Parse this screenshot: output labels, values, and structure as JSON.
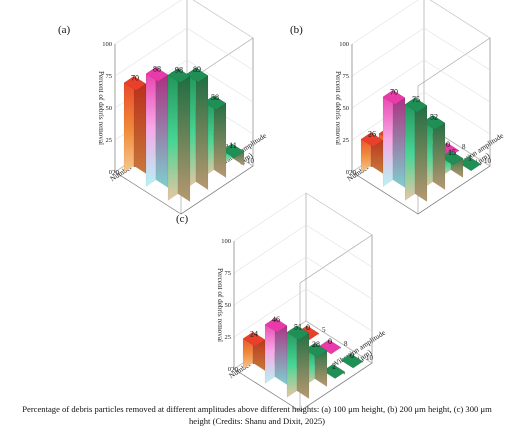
{
  "caption": "Percentage of debris particles removed at different amplitudes above different heights: (a) 100 μm height, (b) 200 μm height, (c) 300 μm height (Credits: Shanu and Dixit, 2025)",
  "chart_data": [
    {
      "type": "bar3d",
      "panel_label": "(a)",
      "zlabel": "Percent of debris removal",
      "xlabel": "Number of cycle",
      "ylabel": "Vibration amplitude (μm)",
      "zlim": [
        0,
        100
      ],
      "z_ticks": [
        0,
        25,
        50,
        75,
        100
      ],
      "cycles": [
        20,
        15,
        10,
        5
      ],
      "amplitudes": [
        5,
        8,
        10
      ],
      "values": [
        [
          70,
          88,
          98
        ],
        [
          58,
          74,
          89
        ],
        [
          30,
          40,
          58
        ],
        [
          1,
          10,
          11
        ]
      ],
      "labels": [
        [
          "70",
          "88",
          "98"
        ],
        [
          "58",
          "74",
          "89"
        ],
        [
          "30",
          "40",
          "58"
        ],
        [
          "1",
          "10",
          "11"
        ]
      ]
    },
    {
      "type": "bar3d",
      "panel_label": "(b)",
      "zlabel": "Percent of debris removal",
      "xlabel": "Number of cycle",
      "ylabel": "Vibration amplitude (μm)",
      "zlim": [
        0,
        100
      ],
      "z_ticks": [
        0,
        25,
        50,
        75,
        100
      ],
      "cycles": [
        20,
        15,
        10,
        5
      ],
      "amplitudes": [
        5,
        8,
        10
      ],
      "values": [
        [
          26,
          70,
          75
        ],
        [
          21,
          49,
          52
        ],
        [
          3,
          11,
          15
        ],
        [
          0,
          0,
          1
        ]
      ],
      "labels": [
        [
          "26",
          "70",
          "75"
        ],
        [
          "21",
          "49",
          "52"
        ],
        [
          "3",
          "11",
          "15"
        ],
        [
          "0",
          "0",
          "1"
        ]
      ]
    },
    {
      "type": "bar3d",
      "panel_label": "(c)",
      "zlabel": "Percent of debris removal",
      "xlabel": "Number of cycle",
      "ylabel": "Vibration amplitude (μm)",
      "zlim": [
        0,
        100
      ],
      "z_ticks": [
        0,
        25,
        50,
        75,
        100
      ],
      "cycles": [
        20,
        15,
        10,
        5
      ],
      "amplitudes": [
        5,
        8,
        10
      ],
      "values": [
        [
          24,
          46,
          51
        ],
        [
          0,
          19,
          28
        ],
        [
          0,
          0,
          2
        ],
        [
          0,
          0,
          0
        ]
      ],
      "labels": [
        [
          "24",
          "46",
          "51"
        ],
        [
          "0",
          "19",
          "28"
        ],
        [
          "0",
          "0",
          "2"
        ],
        [
          "0",
          "0",
          "0"
        ]
      ]
    }
  ],
  "colors": {
    "amp5": [
      "#e8402a",
      "#f08a3a",
      "#f5c38a"
    ],
    "amp8": [
      "#e83aa8",
      "#f59ae0",
      "#b8f5f5"
    ],
    "amp10": [
      "#1f8f55",
      "#3fd18a",
      "#e6c4a0"
    ]
  }
}
